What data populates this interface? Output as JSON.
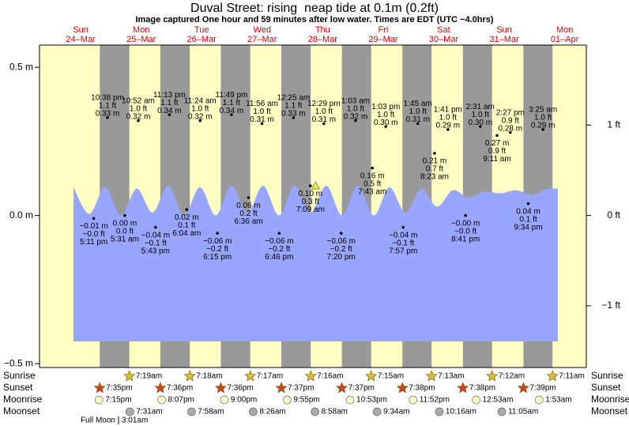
{
  "chart_data": {
    "type": "tide",
    "title": "Duval Street: rising  neap tide at 0.1m (0.2ft)",
    "subtitle": "Image captured One hour and 59 minutes after low water. Times are EDT (UTC −4.0hrs)",
    "day_names": [
      "Sun",
      "Mon",
      "Tue",
      "Wed",
      "Thu",
      "Fri",
      "Sat",
      "Sun",
      "Mon"
    ],
    "dates": [
      "24–Mar",
      "25–Mar",
      "26–Mar",
      "27–Mar",
      "28–Mar",
      "29–Mar",
      "30–Mar",
      "31–Mar",
      "01–Apr"
    ],
    "ylim": [
      -0.513,
      0.575
    ],
    "yticks": [
      {
        "value": 0.5,
        "label": "0.5 m"
      },
      {
        "value": 0,
        "label": "0.0 m"
      },
      {
        "value": -0.5,
        "label": "−0.5 m"
      }
    ],
    "y2lim": [
      -1.683,
      1.886
    ],
    "y2ticks": [
      {
        "value": 1,
        "label": "1 ft"
      },
      {
        "value": 0,
        "label": "0 ft"
      },
      {
        "value": -1,
        "label": "−1 ft"
      }
    ],
    "colors": {
      "day": "#ffffc4",
      "night": "#999999",
      "water": "#99a6ff",
      "dates": "#dd0000",
      "now": "#eeee44"
    },
    "curve": {
      "x": [
        9.15,
        15.42,
        21.69,
        27.96,
        34.23,
        40.5,
        46.77,
        53.04,
        59.31,
        65.58,
        71.85,
        78.12,
        84.39,
        90.66,
        96.93,
        103.2,
        109.5,
        115.7,
        122.0,
        128.3,
        134.5,
        140.8,
        147.1,
        153.4,
        159.6,
        165.9,
        172.2,
        178.5,
        184.8,
        191.0,
        197.3,
        201.3
      ],
      "values": [
        0.095,
        0.005,
        0.095,
        0.0,
        0.09,
        0.01,
        0.1,
        0.0,
        0.095,
        0.0,
        0.1,
        0.01,
        0.1,
        0.0,
        0.1,
        0.01,
        0.1,
        0.0,
        0.1,
        0.0,
        0.095,
        0.01,
        0.09,
        0.03,
        0.085,
        0.06,
        0.08,
        0.075,
        0.085,
        0.07,
        0.09,
        0.09
      ]
    },
    "now": {
      "x": 105.2,
      "value": 0.1
    },
    "highs": {
      "dates": [
        "24–Mar",
        "25–Mar",
        "25–Mar",
        "26–Mar",
        "26–Mar",
        "27–Mar",
        "28–Mar",
        "28–Mar",
        "29–Mar",
        "29–Mar",
        "30–Mar",
        "30–Mar",
        "31–Mar",
        "31–Mar",
        "01–Apr"
      ],
      "times": [
        "10:38 pm",
        "10:52 am",
        "11:13 pm",
        "11:24 am",
        "11:49 pm",
        "11:56 am",
        "12:25 am",
        "12:29 pm",
        "1:03 am",
        "1:03 pm",
        "1:45 am",
        "1:41 pm",
        "2:31 am",
        "2:27 pm",
        "3:25 am"
      ],
      "values": [
        0.33,
        0.32,
        0.34,
        0.32,
        0.34,
        0.31,
        0.33,
        0.31,
        0.32,
        0.3,
        0.31,
        0.29,
        0.3,
        0.28,
        0.29
      ],
      "value_labels": [
        "0.33 m",
        "0.32 m",
        "0.34 m",
        "0.32 m",
        "0.34 m",
        "0.31 m",
        "0.33 m",
        "0.31 m",
        "0.32 m",
        "0.30 m",
        "0.31 m",
        "0.29 m",
        "0.30 m",
        "0.28 m",
        "0.29 m"
      ],
      "ft_labels": [
        "1.1 ft",
        "1.0 ft",
        "1.1 ft",
        "1.0 ft",
        "1.1 ft",
        "1.0 ft",
        "1.1 ft",
        "1.0 ft",
        "1.0 ft",
        "1.0 ft",
        "1.0 ft",
        "1.0 ft",
        "1.0 ft",
        "0.9 ft",
        "1.0 ft"
      ]
    },
    "lows": {
      "dates": [
        "24–Mar",
        "25–Mar",
        "25–Mar",
        "26–Mar",
        "26–Mar",
        "27–Mar",
        "27–Mar",
        "28–Mar",
        "28–Mar",
        "29–Mar",
        "29–Mar",
        "30–Mar",
        "30–Mar",
        "31–Mar",
        "31–Mar"
      ],
      "times": [
        "5:11 pm",
        "5:31 am",
        "5:43 pm",
        "6:04 am",
        "6:15 pm",
        "6:36 am",
        "6:46 pm",
        "7:09 am",
        "7:20 pm",
        "7:43 am",
        "7:57 pm",
        "8:23 am",
        "8:41 pm",
        "9:11 am",
        "9:34 pm"
      ],
      "values": [
        -0.01,
        0.0,
        -0.04,
        0.02,
        -0.06,
        0.06,
        -0.06,
        0.1,
        -0.06,
        0.16,
        -0.04,
        0.21,
        0.0,
        0.27,
        0.04
      ],
      "value_labels": [
        "−0.01 m",
        "0.00 m",
        "−0.04 m",
        "0.02 m",
        "−0.06 m",
        "0.06 m",
        "−0.06 m",
        "0.10 m",
        "−0.06 m",
        "0.16 m",
        "−0.04 m",
        "0.21 m",
        "−0.00 m",
        "0.27 m",
        "0.04 m"
      ],
      "ft_labels": [
        "−0.0 ft",
        "0.0 ft",
        "−0.1 ft",
        "0.1 ft",
        "−0.2 ft",
        "0.2 ft",
        "−0.2 ft",
        "0.3 ft",
        "−0.2 ft",
        "0.5 ft",
        "−0.1 ft",
        "0.7 ft",
        "−0.0 ft",
        "0.9 ft",
        "0.1 ft"
      ]
    },
    "sunrise": {
      "label": "Sunrise",
      "dates": [
        "25–Mar",
        "26–Mar",
        "27–Mar",
        "28–Mar",
        "29–Mar",
        "30–Mar",
        "31–Mar",
        "01–Apr"
      ],
      "times": [
        "7:19am",
        "7:18am",
        "7:17am",
        "7:16am",
        "7:15am",
        "7:13am",
        "7:12am",
        "7:11am"
      ]
    },
    "sunset": {
      "label": "Sunset",
      "dates": [
        "24–Mar",
        "25–Mar",
        "26–Mar",
        "27–Mar",
        "28–Mar",
        "29–Mar",
        "30–Mar",
        "31–Mar"
      ],
      "times": [
        "7:35pm",
        "7:36pm",
        "7:36pm",
        "7:37pm",
        "7:37pm",
        "7:38pm",
        "7:38pm",
        "7:39pm"
      ]
    },
    "moonrise": {
      "label": "Moonrise",
      "dates": [
        "24–Mar",
        "25–Mar",
        "26–Mar",
        "27–Mar",
        "28–Mar",
        "29–Mar",
        "31–Mar",
        "01–Apr"
      ],
      "times": [
        "7:15pm",
        "8:07pm",
        "9:00pm",
        "9:55pm",
        "10:53pm",
        "11:52pm",
        "12:53am",
        "1:53am"
      ]
    },
    "moonset": {
      "label": "Moonset",
      "dates": [
        "25–Mar",
        "26–Mar",
        "27–Mar",
        "28–Mar",
        "29–Mar",
        "30–Mar",
        "31–Mar"
      ],
      "times": [
        "7:31am",
        "7:58am",
        "8:26am",
        "8:58am",
        "9:34am",
        "10:16am",
        "11:05am"
      ]
    },
    "moon_phase": {
      "label": "Full Moon",
      "date": "25–Mar",
      "time": "3:01am"
    }
  }
}
